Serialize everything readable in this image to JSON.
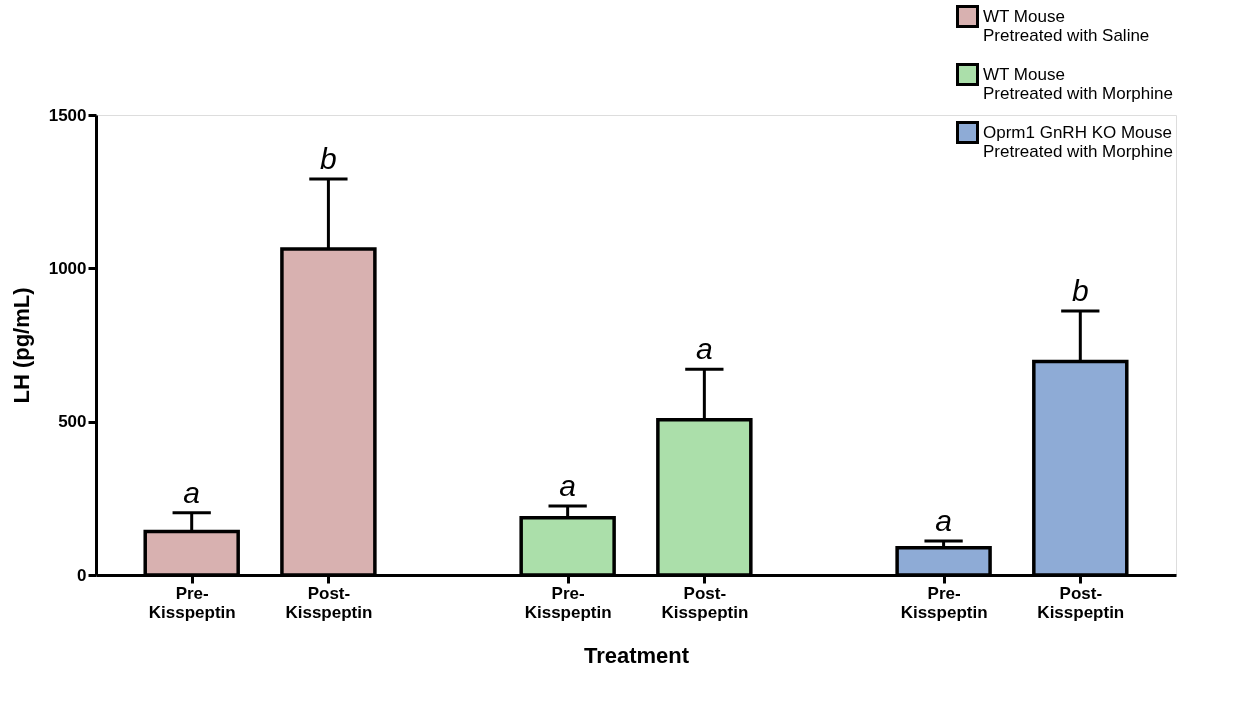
{
  "chart_data": {
    "type": "bar",
    "xlabel": "Treatment",
    "ylabel": "LH (pg/mL)",
    "categories": [
      "Pre-\nKisspeptin",
      "Post-\nKisspeptin",
      "Pre-\nKisspeptin",
      "Post-\nKisspeptin",
      "Pre-\nKisspeptin",
      "Post-\nKisspeptin"
    ],
    "series": [
      {
        "name": "WT Mouse\nPretreated with Saline",
        "color": "#d8b1b0",
        "values": [
          142,
          1063,
          null,
          null,
          null,
          null
        ],
        "errors": [
          [
            142,
            203
          ],
          [
            1063,
            1291
          ],
          null,
          null,
          null,
          null
        ],
        "value_labels": [
          "a",
          "b",
          null,
          null,
          null,
          null
        ]
      },
      {
        "name": "WT Mouse\nPretreated with Morphine",
        "color": "#abdfaa",
        "values": [
          null,
          null,
          187,
          506,
          null,
          null
        ],
        "errors": [
          null,
          null,
          [
            187,
            225
          ],
          [
            506,
            671
          ],
          null,
          null
        ],
        "value_labels": [
          null,
          null,
          "a",
          "a",
          null,
          null
        ]
      },
      {
        "name": "Oprm1 GnRH KO Mouse\nPretreated with Morphine",
        "color": "#8eabd6",
        "values": [
          null,
          null,
          null,
          null,
          89,
          696
        ],
        "errors": [
          null,
          null,
          null,
          null,
          [
            89,
            111
          ],
          [
            696,
            861
          ]
        ],
        "value_labels": [
          null,
          null,
          null,
          null,
          "a",
          "b"
        ]
      }
    ],
    "ylim": [
      0,
      1500
    ],
    "yticks": [
      0,
      500,
      1000,
      1500
    ],
    "grid": false,
    "legend": "top right"
  }
}
